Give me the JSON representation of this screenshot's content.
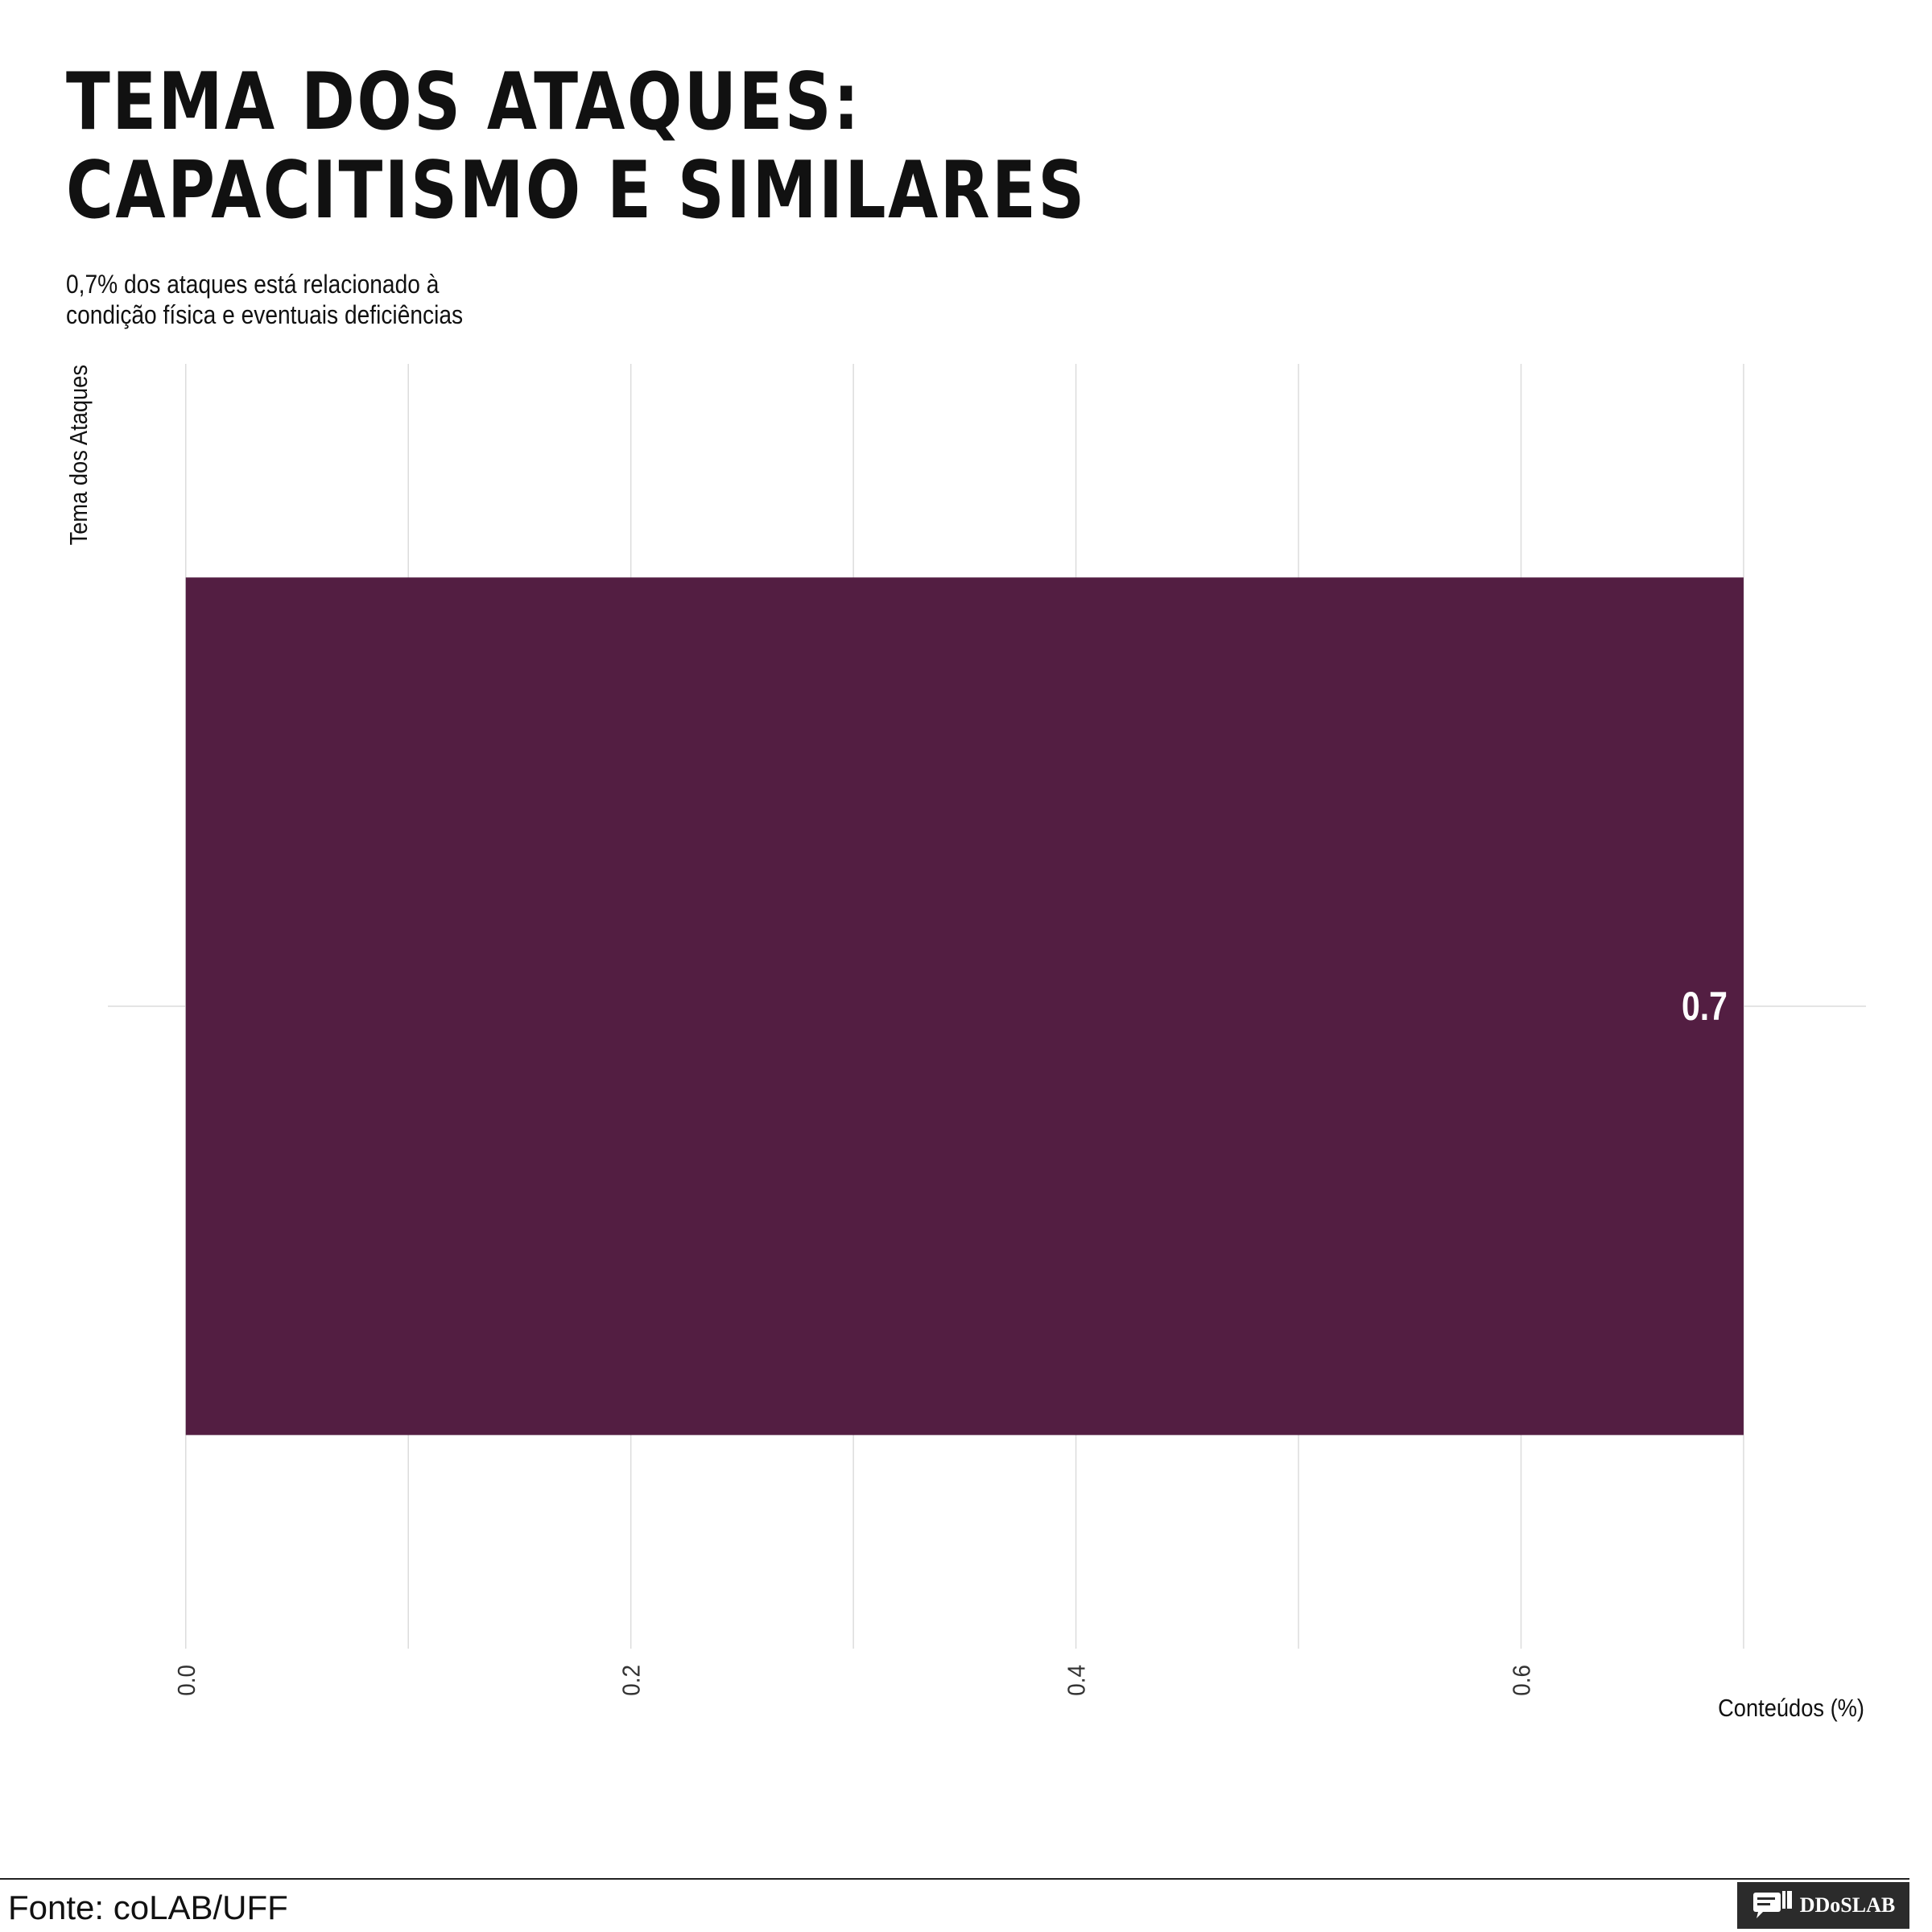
{
  "chart_data": {
    "type": "bar",
    "orientation": "horizontal",
    "title_lines": [
      "TEMA DOS ATAQUES:",
      "CAPACITISMO E SIMILARES"
    ],
    "subtitle_lines": [
      "0,7% dos ataques está relacionado à",
      "condição física e eventuais deficiências"
    ],
    "xlabel": "Conteúdos (%)",
    "ylabel": "Tema dos Ataques",
    "categories": [
      ""
    ],
    "values": [
      0.7
    ],
    "data_labels": [
      "0.7"
    ],
    "x_ticks": [
      "0.0",
      "0.2",
      "0.4",
      "0.6"
    ],
    "x_tick_values": [
      0.0,
      0.2,
      0.4,
      0.6
    ],
    "xlim": [
      -0.035,
      0.755
    ],
    "bar_color": "#531e42",
    "grid": true
  },
  "footer": {
    "source": "Fonte: coLAB/UFF",
    "brand": "DDoSLAB"
  }
}
